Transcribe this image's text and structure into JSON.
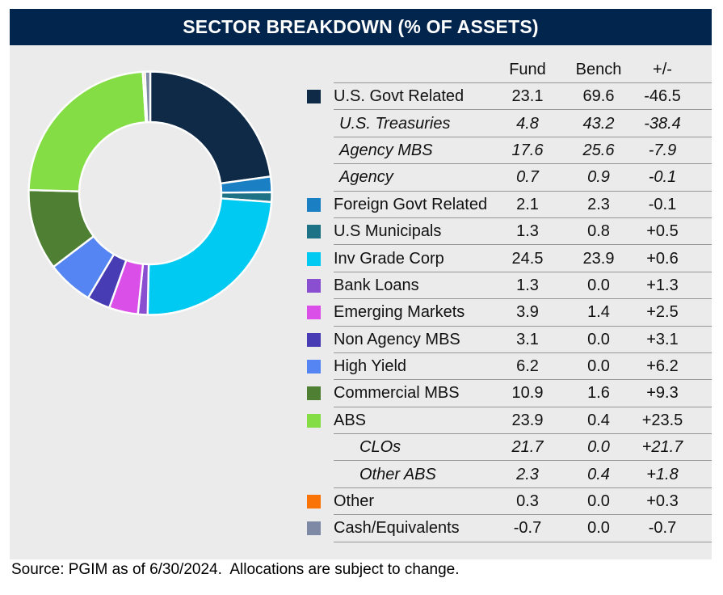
{
  "title": "SECTOR BREAKDOWN (% OF ASSETS)",
  "source_note": "Source: PGIM as of 6/30/2024.  Allocations are subject to change.",
  "table": {
    "columns": [
      "Fund",
      "Bench",
      "+/-"
    ],
    "rows": [
      {
        "label": "U.S. Govt Related",
        "fund": "23.1",
        "bench": "69.6",
        "diff": "-46.5",
        "swatch": "#0e2a47",
        "indent": 0
      },
      {
        "label": "U.S. Treasuries",
        "fund": "4.8",
        "bench": "43.2",
        "diff": "-38.4",
        "indent": 1
      },
      {
        "label": "Agency MBS",
        "fund": "17.6",
        "bench": "25.6",
        "diff": "-7.9",
        "indent": 1
      },
      {
        "label": "Agency",
        "fund": "0.7",
        "bench": "0.9",
        "diff": "-0.1",
        "indent": 1
      },
      {
        "label": "Foreign Govt Related",
        "fund": "2.1",
        "bench": "2.3",
        "diff": "-0.1",
        "swatch": "#1b7fc4",
        "indent": 0
      },
      {
        "label": "U.S Municipals",
        "fund": "1.3",
        "bench": "0.8",
        "diff": "+0.5",
        "swatch": "#1d7286",
        "indent": 0
      },
      {
        "label": "Inv Grade Corp",
        "fund": "24.5",
        "bench": "23.9",
        "diff": "+0.6",
        "swatch": "#00c9f2",
        "indent": 0
      },
      {
        "label": "Bank Loans",
        "fund": "1.3",
        "bench": "0.0",
        "diff": "+1.3",
        "swatch": "#8a4fd0",
        "indent": 0
      },
      {
        "label": "Emerging Markets",
        "fund": "3.9",
        "bench": "1.4",
        "diff": "+2.5",
        "swatch": "#d94fe8",
        "indent": 0
      },
      {
        "label": "Non Agency MBS",
        "fund": "3.1",
        "bench": "0.0",
        "diff": "+3.1",
        "swatch": "#473cb4",
        "indent": 0
      },
      {
        "label": "High Yield",
        "fund": "6.2",
        "bench": "0.0",
        "diff": "+6.2",
        "swatch": "#5585f2",
        "indent": 0
      },
      {
        "label": "Commercial MBS",
        "fund": "10.9",
        "bench": "1.6",
        "diff": "+9.3",
        "swatch": "#4e7f33",
        "indent": 0
      },
      {
        "label": "ABS",
        "fund": "23.9",
        "bench": "0.4",
        "diff": "+23.5",
        "swatch": "#84dd44",
        "indent": 0
      },
      {
        "label": "CLOs",
        "fund": "21.7",
        "bench": "0.0",
        "diff": "+21.7",
        "indent": 2
      },
      {
        "label": "Other ABS",
        "fund": "2.3",
        "bench": "0.4",
        "diff": "+1.8",
        "indent": 2
      },
      {
        "label": "Other",
        "fund": "0.3",
        "bench": "0.0",
        "diff": "+0.3",
        "swatch": "#f97306",
        "indent": 0
      },
      {
        "label": "Cash/Equivalents",
        "fund": "-0.7",
        "bench": "0.0",
        "diff": "-0.7",
        "swatch": "#7d89a5",
        "indent": 0
      }
    ]
  },
  "chart_data": {
    "type": "pie",
    "title": "SECTOR BREAKDOWN (% OF ASSETS)",
    "donut": true,
    "start_angle_deg": 0,
    "direction": "clockwise",
    "note": "Donut of Fund weights (% of assets); negative Cash weight drawn as absolute value; slices separated by white gaps",
    "slices": [
      {
        "label": "U.S. Govt Related",
        "value": 23.1,
        "color": "#0e2a47"
      },
      {
        "label": "Foreign Govt Related",
        "value": 2.1,
        "color": "#1b7fc4"
      },
      {
        "label": "U.S Municipals",
        "value": 1.3,
        "color": "#1d7286"
      },
      {
        "label": "Inv Grade Corp",
        "value": 24.5,
        "color": "#00c9f2"
      },
      {
        "label": "Bank Loans",
        "value": 1.3,
        "color": "#8a4fd0"
      },
      {
        "label": "Emerging Markets",
        "value": 3.9,
        "color": "#d94fe8"
      },
      {
        "label": "Non Agency MBS",
        "value": 3.1,
        "color": "#473cb4"
      },
      {
        "label": "High Yield",
        "value": 6.2,
        "color": "#5585f2"
      },
      {
        "label": "Commercial MBS",
        "value": 10.9,
        "color": "#4e7f33"
      },
      {
        "label": "ABS",
        "value": 23.9,
        "color": "#84dd44"
      },
      {
        "label": "Other",
        "value": 0.3,
        "color": "#f97306"
      },
      {
        "label": "Cash/Equivalents",
        "value": -0.7,
        "color": "#7d89a5"
      }
    ]
  }
}
